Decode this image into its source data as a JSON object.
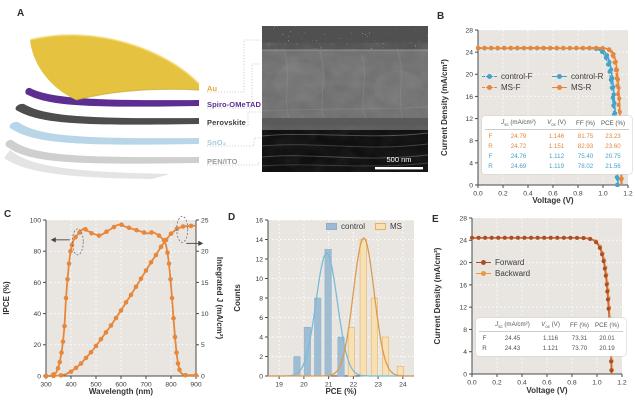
{
  "panels": {
    "A": {
      "label": "A",
      "layers": [
        {
          "name": "Au",
          "sheet_color": "#E5C340",
          "label_color": "#E8A63C"
        },
        {
          "name": "Spiro-OMeTAD",
          "sheet_color": "#5C2E91",
          "label_color": "#5C2E91"
        },
        {
          "name": "Perovskite",
          "sheet_color": "#4E4C4D",
          "label_color": "#3E3E3E"
        },
        {
          "name": "SnO₂",
          "sheet_color": "#B8D6E8",
          "label_color": "#A6CADF"
        },
        {
          "name": "PEN/ITO",
          "sheet_color": "#CFCFCF",
          "label_color": "#9C9C9C"
        }
      ],
      "sem": {
        "scale_label": "500 nm"
      }
    },
    "B": {
      "label": "B"
    },
    "C": {
      "label": "C"
    },
    "D": {
      "label": "D"
    },
    "E": {
      "label": "E"
    }
  },
  "chart_data": [
    {
      "id": "B",
      "type": "jv",
      "xlabel": "Voltage (V)",
      "ylabel": "Current Density (mA/cm²)",
      "xlim": [
        0,
        1.2
      ],
      "ylim": [
        0,
        28
      ],
      "xticks": [
        [
          0,
          "0.0"
        ],
        [
          0.2,
          "0.2"
        ],
        [
          0.4,
          "0.4"
        ],
        [
          0.6,
          "0.6"
        ],
        [
          0.8,
          "0.8"
        ],
        [
          1,
          "1.0"
        ],
        [
          1.2,
          "1.2"
        ]
      ],
      "yticks": [
        [
          0,
          "0"
        ],
        [
          4,
          "4"
        ],
        [
          8,
          "8"
        ],
        [
          12,
          "12"
        ],
        [
          16,
          "16"
        ],
        [
          20,
          "20"
        ],
        [
          24,
          "24"
        ],
        [
          28,
          "28"
        ]
      ],
      "series": [
        {
          "name": "control-F",
          "color": "#45A3C8",
          "dashed": true,
          "jsc": 24.76,
          "voc": 1.112,
          "knee": 0.034
        },
        {
          "name": "control-R",
          "color": "#45A3C8",
          "dashed": false,
          "jsc": 24.69,
          "voc": 1.119,
          "knee": 0.029
        },
        {
          "name": "MS-F",
          "color": "#E6873C",
          "dashed": true,
          "jsc": 24.79,
          "voc": 1.146,
          "knee": 0.024
        },
        {
          "name": "MS-R",
          "color": "#E6873C",
          "dashed": false,
          "jsc": 24.72,
          "voc": 1.151,
          "knee": 0.021
        }
      ],
      "legend": [
        {
          "label": "control-F",
          "color": "#45A3C8",
          "dashed": true
        },
        {
          "label": "control-R",
          "color": "#45A3C8",
          "dashed": false
        },
        {
          "label": "MS-F",
          "color": "#E6873C",
          "dashed": true
        },
        {
          "label": "MS-R",
          "color": "#E6873C",
          "dashed": false
        }
      ],
      "table": {
        "headers": [
          {
            "sym": "J",
            "sub": "sc",
            "unit": "(mA/cm²)",
            "italic": true
          },
          {
            "sym": "V",
            "sub": "oc",
            "unit": "(V)",
            "italic": true
          },
          {
            "sym": "FF",
            "sub": "",
            "unit": "(%)",
            "italic": false
          },
          {
            "sym": "PCE",
            "sub": "",
            "unit": "(%)",
            "italic": false
          }
        ],
        "rows": [
          {
            "label": "F",
            "color": "#E6873C",
            "values": [
              "24.79",
              "1.146",
              "81.75",
              "23.23"
            ]
          },
          {
            "label": "R",
            "color": "#E6873C",
            "values": [
              "24.72",
              "1.151",
              "82.93",
              "23.60"
            ]
          },
          {
            "label": "F",
            "color": "#45A3C8",
            "values": [
              "24.76",
              "1.112",
              "75.40",
              "20.75"
            ]
          },
          {
            "label": "R",
            "color": "#45A3C8",
            "values": [
              "24.69",
              "1.119",
              "78.02",
              "21.56"
            ]
          }
        ]
      }
    },
    {
      "id": "C",
      "type": "dual",
      "xlabel": "Wavelength (nm)",
      "ylabel": "IPCE (%)",
      "ylabel2": "Integrated J (mA/cm²)",
      "xlim": [
        300,
        900
      ],
      "ylim": [
        0,
        100
      ],
      "ylim2": [
        0,
        25
      ],
      "xticks": [
        [
          300,
          "300"
        ],
        [
          400,
          "400"
        ],
        [
          500,
          "500"
        ],
        [
          600,
          "600"
        ],
        [
          700,
          "700"
        ],
        [
          800,
          "800"
        ],
        [
          900,
          "900"
        ]
      ],
      "yticks": [
        [
          0,
          "0"
        ],
        [
          20,
          "20"
        ],
        [
          40,
          "40"
        ],
        [
          60,
          "60"
        ],
        [
          80,
          "80"
        ],
        [
          100,
          "100"
        ]
      ],
      "yticks2": [
        [
          0,
          "0"
        ],
        [
          5,
          "5"
        ],
        [
          10,
          "10"
        ],
        [
          15,
          "15"
        ],
        [
          20,
          "20"
        ],
        [
          25,
          "25"
        ]
      ],
      "series": [
        {
          "name": "IPCE",
          "axis": "left",
          "color": "#E6873C",
          "points": [
            [
              300,
              0
            ],
            [
              315,
              0
            ],
            [
              330,
              1
            ],
            [
              340,
              2
            ],
            [
              348,
              5
            ],
            [
              355,
              9
            ],
            [
              362,
              15
            ],
            [
              368,
              22
            ],
            [
              374,
              32
            ],
            [
              380,
              50
            ],
            [
              386,
              62
            ],
            [
              392,
              72
            ],
            [
              398,
              80
            ],
            [
              404,
              84
            ],
            [
              410,
              87
            ],
            [
              418,
              89
            ],
            [
              426,
              90.5
            ],
            [
              434,
              92
            ],
            [
              442,
              93.5
            ],
            [
              450,
              94.5
            ],
            [
              458,
              94
            ],
            [
              466,
              93
            ],
            [
              474,
              92.5
            ],
            [
              482,
              91.5
            ],
            [
              492,
              91
            ],
            [
              502,
              90.5
            ],
            [
              512,
              90
            ],
            [
              522,
              90.5
            ],
            [
              532,
              91.5
            ],
            [
              542,
              92.5
            ],
            [
              552,
              93.5
            ],
            [
              562,
              94.5
            ],
            [
              572,
              95.5
            ],
            [
              582,
              96.5
            ],
            [
              592,
              97
            ],
            [
              602,
              97
            ],
            [
              612,
              96
            ],
            [
              622,
              95.5
            ],
            [
              632,
              95
            ],
            [
              642,
              94.5
            ],
            [
              652,
              94
            ],
            [
              662,
              93.5
            ],
            [
              672,
              93
            ],
            [
              682,
              92.5
            ],
            [
              692,
              92
            ],
            [
              702,
              91.5
            ],
            [
              712,
              91.5
            ],
            [
              722,
              92
            ],
            [
              732,
              92
            ],
            [
              742,
              91
            ],
            [
              752,
              90
            ],
            [
              762,
              88.5
            ],
            [
              772,
              87
            ],
            [
              780,
              84
            ],
            [
              786,
              79
            ],
            [
              792,
              72
            ],
            [
              798,
              62
            ],
            [
              804,
              50
            ],
            [
              810,
              37
            ],
            [
              816,
              25
            ],
            [
              822,
              15
            ],
            [
              828,
              8
            ],
            [
              834,
              4
            ],
            [
              840,
              2
            ],
            [
              848,
              1
            ],
            [
              858,
              0.5
            ],
            [
              875,
              0.5
            ],
            [
              900,
              0.5
            ]
          ]
        },
        {
          "name": "Integrated J",
          "axis": "right",
          "color": "#E6873C",
          "points": [
            [
              300,
              0
            ],
            [
              330,
              0
            ],
            [
              360,
              0.1
            ],
            [
              380,
              0.3
            ],
            [
              400,
              0.7
            ],
            [
              420,
              1.3
            ],
            [
              440,
              2
            ],
            [
              460,
              2.9
            ],
            [
              480,
              3.8
            ],
            [
              500,
              4.8
            ],
            [
              520,
              5.9
            ],
            [
              540,
              7
            ],
            [
              560,
              8.1
            ],
            [
              580,
              9.3
            ],
            [
              600,
              10.5
            ],
            [
              620,
              11.8
            ],
            [
              640,
              13
            ],
            [
              660,
              14.3
            ],
            [
              680,
              15.6
            ],
            [
              700,
              16.9
            ],
            [
              720,
              18.2
            ],
            [
              740,
              19.4
            ],
            [
              760,
              20.7
            ],
            [
              780,
              21.8
            ],
            [
              800,
              22.8
            ],
            [
              812,
              23.2
            ],
            [
              824,
              23.6
            ],
            [
              836,
              23.8
            ],
            [
              848,
              23.95
            ],
            [
              860,
              24
            ],
            [
              880,
              24.05
            ],
            [
              900,
              24.1
            ]
          ]
        }
      ],
      "annotations": [
        {
          "x": 427,
          "y": 86,
          "dir": "left"
        },
        {
          "x": 845,
          "y": 94,
          "dir": "right"
        }
      ]
    },
    {
      "id": "D",
      "type": "hist",
      "xlabel": "PCE (%)",
      "ylabel": "Counts",
      "xlim": [
        18.55,
        24.45
      ],
      "ylim": [
        0,
        16
      ],
      "xticks": [
        [
          19,
          "19"
        ],
        [
          20,
          "20"
        ],
        [
          21,
          "21"
        ],
        [
          22,
          "22"
        ],
        [
          23,
          "23"
        ],
        [
          24,
          "24"
        ]
      ],
      "yticks": [
        [
          0,
          "0"
        ],
        [
          2,
          "2"
        ],
        [
          4,
          "4"
        ],
        [
          6,
          "6"
        ],
        [
          8,
          "8"
        ],
        [
          10,
          "10"
        ],
        [
          12,
          "12"
        ],
        [
          14,
          "14"
        ],
        [
          16,
          "16"
        ]
      ],
      "series": [
        {
          "name": "control",
          "fill": "#9CBBD2",
          "edge": "#8DAEC8",
          "centers": [
            19.72,
            20.14,
            20.56,
            20.98,
            21.5
          ],
          "counts": [
            2,
            5,
            8,
            13,
            4
          ],
          "bar_width": 0.26,
          "curve": {
            "mu": 20.92,
            "sigma": 0.43,
            "amp": 12.6,
            "color": "#79BCD8"
          }
        },
        {
          "name": "MS",
          "fill": "#F8E0B0",
          "edge": "#E2B06A",
          "centers": [
            21.92,
            22.4,
            22.85,
            23.3,
            23.9
          ],
          "counts": [
            5,
            14,
            8,
            4,
            1
          ],
          "bar_width": 0.26,
          "curve": {
            "mu": 22.42,
            "sigma": 0.42,
            "amp": 14.15,
            "color": "#DE9A4E"
          }
        }
      ],
      "legend": [
        {
          "label": "control",
          "fill": "#9CBBD2",
          "edge": "#8DAEC8"
        },
        {
          "label": "MS",
          "fill": "#F8E0B0",
          "edge": "#E2B06A"
        }
      ]
    },
    {
      "id": "E",
      "type": "jv",
      "xlabel": "Voltage (V)",
      "ylabel": "Current Density (mA/cm²)",
      "xlim": [
        0,
        1.2
      ],
      "ylim": [
        0,
        28
      ],
      "xticks": [
        [
          0,
          "0.0"
        ],
        [
          0.2,
          "0.2"
        ],
        [
          0.4,
          "0.4"
        ],
        [
          0.6,
          "0.6"
        ],
        [
          0.8,
          "0.8"
        ],
        [
          1,
          "1.0"
        ],
        [
          1.2,
          "1.2"
        ]
      ],
      "yticks": [
        [
          0,
          "0"
        ],
        [
          4,
          "4"
        ],
        [
          8,
          "8"
        ],
        [
          12,
          "12"
        ],
        [
          16,
          "16"
        ],
        [
          20,
          "20"
        ],
        [
          24,
          "24"
        ],
        [
          28,
          "28"
        ]
      ],
      "draw_order": [
        1,
        0
      ],
      "series": [
        {
          "name": "Forward",
          "color": "#A94E2B",
          "line": "#C96A3C",
          "dashed": false,
          "jsc": 24.45,
          "voc": 1.116,
          "knee": 0.036
        },
        {
          "name": "Backward",
          "color": "#ED9642",
          "line": "#ED9642",
          "dashed": false,
          "jsc": 24.43,
          "voc": 1.121,
          "knee": 0.035
        }
      ],
      "legend": [
        {
          "label": "Forward",
          "color": "#A94E2B",
          "dashed": false
        },
        {
          "label": "Backward",
          "color": "#ED9642",
          "dashed": false
        }
      ],
      "table": {
        "headers": [
          {
            "sym": "J",
            "sub": "sc",
            "unit": "(mA/cm²)",
            "italic": true
          },
          {
            "sym": "V",
            "sub": "oc",
            "unit": "(V)",
            "italic": true
          },
          {
            "sym": "FF",
            "sub": "",
            "unit": "(%)",
            "italic": false
          },
          {
            "sym": "PCE",
            "sub": "",
            "unit": "(%)",
            "italic": false
          }
        ],
        "rows": [
          {
            "label": "F",
            "color": "#555555",
            "values": [
              "24.45",
              "1.116",
              "73.31",
              "20.01"
            ]
          },
          {
            "label": "R",
            "color": "#555555",
            "values": [
              "24.43",
              "1.121",
              "73.70",
              "20.19"
            ]
          }
        ]
      }
    }
  ]
}
